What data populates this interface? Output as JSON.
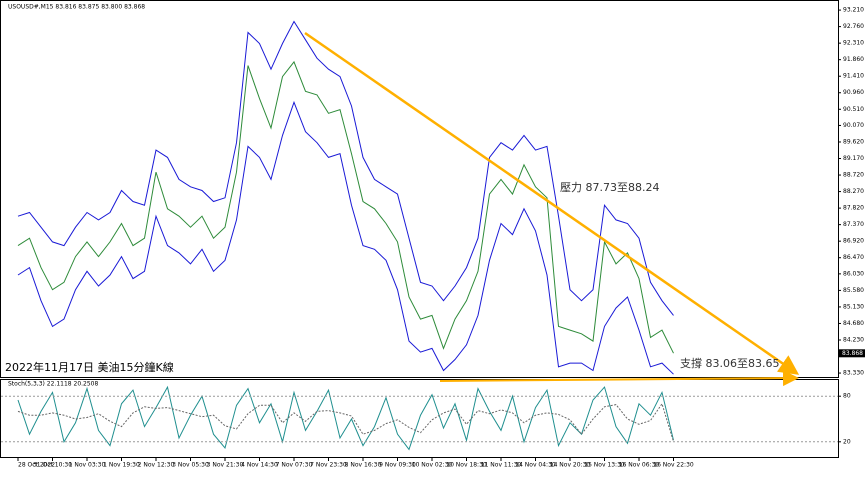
{
  "chart_data": [
    {
      "type": "line",
      "title": "USOUSD#,M15 83.816 83.875 83.800 83.868",
      "categories": [
        "28 Oct 2022",
        null,
        null,
        "31 Oct 10:30",
        null,
        null,
        "1 Nov 03:30",
        null,
        null,
        "1 Nov 19:30",
        null,
        null,
        "2 Nov 12:30",
        null,
        null,
        "3 Nov 05:30",
        null,
        null,
        "3 Nov 21:30",
        null,
        null,
        "4 Nov 14:30",
        null,
        null,
        "7 Nov 07:30",
        null,
        null,
        "7 Nov 23:30",
        null,
        null,
        "8 Nov 16:30",
        null,
        null,
        "9 Nov 09:30",
        null,
        null,
        "10 Nov 02:30",
        null,
        null,
        "10 Nov 18:30",
        null,
        null,
        "11 Nov 11:30",
        null,
        null,
        "14 Nov 04:30",
        null,
        null,
        "14 Nov 20:30",
        null,
        null,
        "15 Nov 13:30",
        null,
        null,
        "16 Nov 06:30",
        null,
        null,
        "16 Nov 22:30"
      ],
      "series": [
        {
          "name": "Upper band",
          "color": "#1a1ad6",
          "values": [
            87.6,
            87.7,
            87.3,
            86.9,
            86.8,
            87.3,
            87.7,
            87.5,
            87.7,
            88.3,
            88.0,
            87.9,
            89.4,
            89.2,
            88.6,
            88.4,
            88.3,
            88.0,
            88.1,
            89.6,
            92.6,
            92.3,
            91.6,
            92.3,
            92.9,
            92.4,
            91.9,
            91.6,
            91.4,
            90.6,
            89.2,
            88.6,
            88.4,
            88.2,
            87.0,
            85.8,
            85.7,
            85.3,
            85.7,
            86.2,
            87.0,
            89.2,
            89.6,
            89.4,
            89.8,
            89.4,
            89.5,
            87.6,
            85.6,
            85.3,
            85.6,
            87.9,
            87.5,
            87.4,
            87.0,
            85.8,
            85.3,
            84.9
          ]
        },
        {
          "name": "Close",
          "color": "#2e8b3a",
          "values": [
            86.8,
            87.0,
            86.2,
            85.6,
            85.8,
            86.5,
            86.9,
            86.5,
            86.9,
            87.4,
            86.8,
            87.0,
            88.8,
            87.8,
            87.6,
            87.3,
            87.6,
            87.0,
            87.3,
            88.8,
            91.7,
            90.8,
            90.0,
            91.4,
            91.8,
            91.0,
            90.9,
            90.4,
            90.5,
            89.3,
            88.0,
            87.8,
            87.4,
            86.9,
            85.4,
            84.8,
            84.9,
            84.0,
            84.8,
            85.3,
            86.1,
            88.2,
            88.6,
            88.2,
            89.0,
            88.4,
            88.1,
            84.6,
            84.5,
            84.4,
            84.2,
            86.9,
            86.3,
            86.6,
            85.9,
            84.3,
            84.5,
            83.87
          ]
        },
        {
          "name": "Lower band",
          "color": "#1a1ad6",
          "values": [
            86.0,
            86.2,
            85.3,
            84.6,
            84.8,
            85.6,
            86.1,
            85.7,
            86.0,
            86.5,
            85.9,
            86.1,
            87.6,
            86.8,
            86.6,
            86.3,
            86.7,
            86.1,
            86.4,
            87.5,
            89.5,
            89.2,
            88.6,
            89.8,
            90.7,
            89.9,
            89.6,
            89.2,
            89.3,
            87.9,
            86.8,
            86.7,
            86.4,
            85.6,
            84.2,
            83.9,
            84.0,
            83.4,
            83.7,
            84.1,
            84.9,
            86.4,
            87.4,
            87.1,
            87.8,
            87.2,
            86.0,
            83.5,
            83.6,
            83.6,
            83.4,
            84.6,
            85.1,
            85.4,
            84.5,
            83.5,
            83.6,
            83.3
          ]
        }
      ],
      "current_price": 83.868,
      "ylim": [
        83.25,
        93.43
      ],
      "yticks": [
        {
          "value": 93.21,
          "label": "93.210"
        },
        {
          "value": 92.76,
          "label": "92.760"
        },
        {
          "value": 92.31,
          "label": "92.310"
        },
        {
          "value": 91.86,
          "label": "91.860"
        },
        {
          "value": 91.41,
          "label": "91.410"
        },
        {
          "value": 90.96,
          "label": "90.960"
        },
        {
          "value": 90.51,
          "label": "90.510"
        },
        {
          "value": 90.07,
          "label": "90.070"
        },
        {
          "value": 89.62,
          "label": "89.620"
        },
        {
          "value": 89.17,
          "label": "89.170"
        },
        {
          "value": 88.72,
          "label": "88.720"
        },
        {
          "value": 88.27,
          "label": "88.270"
        },
        {
          "value": 87.82,
          "label": "87.820"
        },
        {
          "value": 87.37,
          "label": "87.370"
        },
        {
          "value": 86.92,
          "label": "86.920"
        },
        {
          "value": 86.47,
          "label": "86.470"
        },
        {
          "value": 86.03,
          "label": "86.030"
        },
        {
          "value": 85.58,
          "label": "85.580"
        },
        {
          "value": 85.13,
          "label": "85.130"
        },
        {
          "value": 84.68,
          "label": "84.680"
        },
        {
          "value": 84.23,
          "label": "84.230"
        },
        {
          "value": 83.33,
          "label": "83.330"
        }
      ],
      "annotations": [
        "壓力 87.73至88.24",
        "支撐 83.06至83.65",
        "2022年11月17日 美油15分鐘K線"
      ]
    },
    {
      "type": "line",
      "title": "Stoch(5,3,3) 22.1118 20.2508",
      "series": [
        {
          "name": "%K",
          "color": "#1f8f8f",
          "values": [
            75,
            30,
            60,
            85,
            20,
            45,
            90,
            35,
            15,
            70,
            88,
            40,
            65,
            92,
            25,
            55,
            80,
            30,
            12,
            68,
            90,
            45,
            70,
            20,
            85,
            35,
            60,
            88,
            25,
            50,
            15,
            40,
            78,
            30,
            10,
            55,
            82,
            38,
            70,
            22,
            90,
            60,
            35,
            80,
            20,
            65,
            88,
            15,
            45,
            30,
            75,
            92,
            40,
            18,
            70,
            55,
            85,
            22.1118
          ]
        },
        {
          "name": "%D",
          "color": "#666666",
          "values": [
            60,
            55,
            55,
            58,
            55,
            50,
            52,
            57,
            47,
            40,
            58,
            66,
            64,
            65,
            61,
            57,
            53,
            55,
            41,
            37,
            57,
            68,
            68,
            45,
            58,
            47,
            60,
            61,
            58,
            54,
            30,
            35,
            44,
            49,
            39,
            32,
            49,
            58,
            63,
            43,
            61,
            57,
            62,
            58,
            45,
            55,
            58,
            56,
            49,
            30,
            50,
            66,
            69,
            50,
            43,
            48,
            70,
            20.2508
          ]
        }
      ],
      "ylim": [
        0,
        100
      ],
      "yticks": [
        20,
        80
      ]
    }
  ]
}
